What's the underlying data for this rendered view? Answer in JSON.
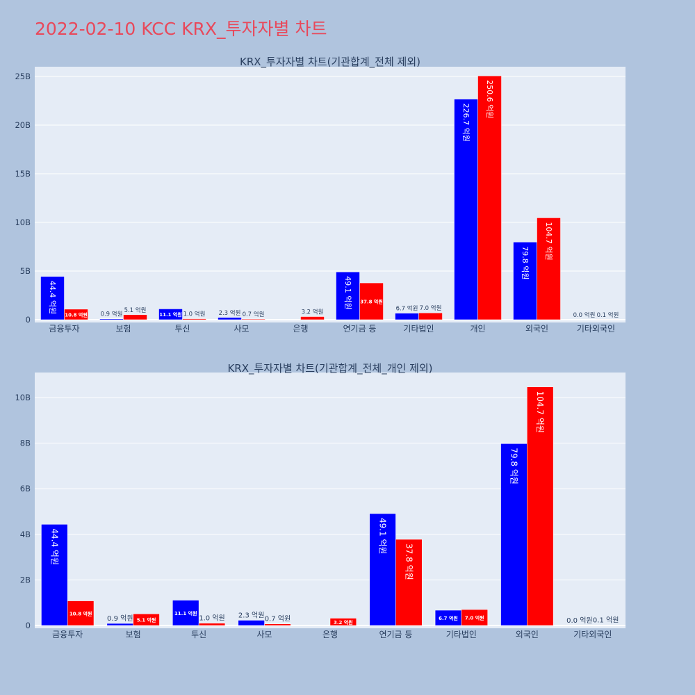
{
  "title": "2022-02-10 KCC KRX_투자자별 차트",
  "colors": {
    "background": "#b0c4de",
    "plot_bg": "#e5ecf6",
    "title": "#e8495b",
    "buy": "#0000ff",
    "sell": "#ff0000"
  },
  "chart_data": [
    {
      "type": "bar",
      "title": "KRX_투자자별 차트(기관합계_전체 제외)",
      "categories": [
        "금융투자",
        "보험",
        "투신",
        "사모",
        "은행",
        "연기금 등",
        "기타법인",
        "개인",
        "외국인",
        "기타외국인"
      ],
      "ylim": [
        0,
        26
      ],
      "yticks": [
        0,
        5,
        10,
        15,
        20,
        25
      ],
      "ytick_labels": [
        "0",
        "5B",
        "10B",
        "15B",
        "20B",
        "25B"
      ],
      "grid": true,
      "series": [
        {
          "color": "#0000ff",
          "values": [
            4.44,
            0.09,
            1.11,
            0.23,
            0,
            4.91,
            0.67,
            22.67,
            7.98,
            0.0
          ],
          "labels": [
            "44.4 억원",
            "0.9 억원",
            "11.1 억원",
            "2.3 억원",
            "",
            "49.1 억원",
            "6.7 억원",
            "226.7 억원",
            "79.8 억원",
            "0.0 억원"
          ]
        },
        {
          "color": "#ff0000",
          "values": [
            1.08,
            0.51,
            0.1,
            0.07,
            0.32,
            3.78,
            0.7,
            25.06,
            10.47,
            0.01
          ],
          "labels": [
            "10.8 억원",
            "5.1 억원",
            "1.0 억원",
            "0.7 억원",
            "3.2 억원",
            "37.8 억원",
            "7.0 억원",
            "250.6 억원",
            "104.7 억원",
            "0.1 억원"
          ]
        }
      ]
    },
    {
      "type": "bar",
      "title": "KRX_투자자별 차트(기관합계_전체_개인 제외)",
      "categories": [
        "금융투자",
        "보험",
        "투신",
        "사모",
        "은행",
        "연기금 등",
        "기타법인",
        "외국인",
        "기타외국인"
      ],
      "ylim": [
        0,
        11.1
      ],
      "yticks": [
        0,
        2,
        4,
        6,
        8,
        10
      ],
      "ytick_labels": [
        "0",
        "2B",
        "4B",
        "6B",
        "8B",
        "10B"
      ],
      "grid": true,
      "series": [
        {
          "color": "#0000ff",
          "values": [
            4.44,
            0.09,
            1.11,
            0.23,
            0,
            4.91,
            0.67,
            7.98,
            0.0
          ],
          "labels": [
            "44.4 억원",
            "0.9 억원",
            "11.1 억원",
            "2.3 억원",
            "",
            "49.1 억원",
            "6.7 억원",
            "79.8 억원",
            "0.0 억원"
          ]
        },
        {
          "color": "#ff0000",
          "values": [
            1.08,
            0.51,
            0.1,
            0.07,
            0.32,
            3.78,
            0.7,
            10.47,
            0.01
          ],
          "labels": [
            "10.8 억원",
            "5.1 억원",
            "1.0 억원",
            "0.7 억원",
            "3.2 억원",
            "37.8 억원",
            "7.0 억원",
            "104.7 억원",
            "0.1 억원"
          ]
        }
      ]
    }
  ]
}
